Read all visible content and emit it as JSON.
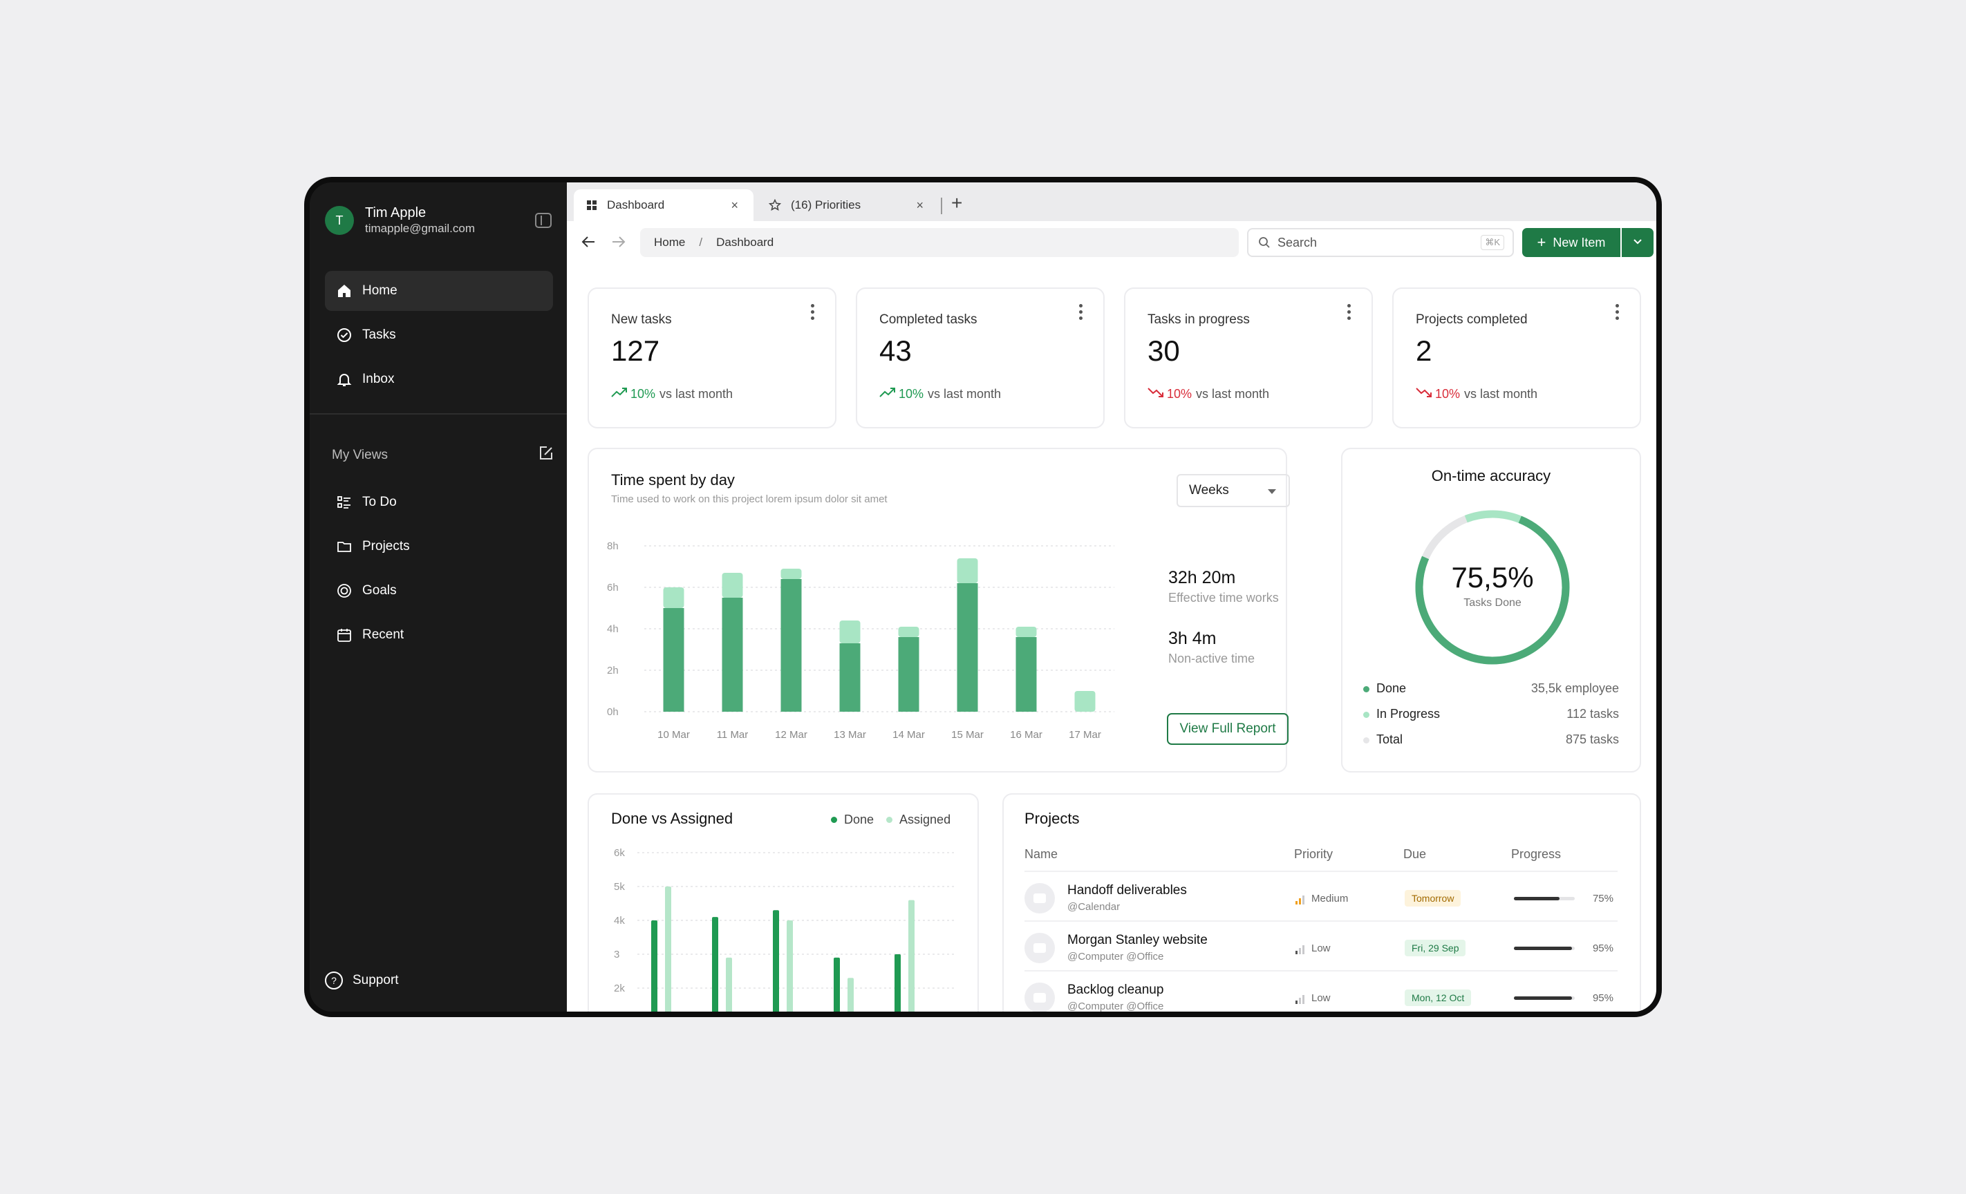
{
  "user": {
    "initial": "T",
    "name": "Tim Apple",
    "email": "timapple@gmail.com"
  },
  "nav": [
    {
      "label": "Home",
      "icon": "home-icon",
      "active": true
    },
    {
      "label": "Tasks",
      "icon": "check-circle-icon"
    },
    {
      "label": "Inbox",
      "icon": "bell-icon"
    }
  ],
  "my_views": {
    "title": "My Views",
    "items": [
      {
        "label": "To Do",
        "icon": "list-icon"
      },
      {
        "label": "Projects",
        "icon": "folder-icon"
      },
      {
        "label": "Goals",
        "icon": "target-icon"
      },
      {
        "label": "Recent",
        "icon": "calendar-icon"
      }
    ]
  },
  "support": {
    "label": "Support",
    "glyph": "?"
  },
  "tabs": [
    {
      "label": "Dashboard",
      "icon": "grid-icon",
      "active": true
    },
    {
      "label": "(16) Priorities",
      "icon": "star-icon"
    }
  ],
  "breadcrumb": [
    "Home",
    "Dashboard"
  ],
  "breadcrumb_sep": "/",
  "search": {
    "placeholder": "Search",
    "shortcut": "⌘K"
  },
  "new_item": {
    "label": "New Item"
  },
  "stats": [
    {
      "label": "New tasks",
      "value": "127",
      "trend": "up",
      "pct": "10%",
      "suffix": "vs last month"
    },
    {
      "label": "Completed tasks",
      "value": "43",
      "trend": "up",
      "pct": "10%",
      "suffix": "vs last month"
    },
    {
      "label": "Tasks in progress",
      "value": "30",
      "trend": "down",
      "pct": "10%",
      "suffix": "vs last month"
    },
    {
      "label": "Projects completed",
      "value": "2",
      "trend": "down",
      "pct": "10%",
      "suffix": "vs last month"
    }
  ],
  "time_spent": {
    "title": "Time spent by day",
    "subtitle": "Time used to work on this project lorem ipsum dolor sit amet",
    "period": "Weeks",
    "effective": {
      "value": "32h 20m",
      "label": "Effective time works"
    },
    "nonactive": {
      "value": "3h 4m",
      "label": "Non-active time"
    },
    "report_label": "View Full Report",
    "chart_data": {
      "type": "bar",
      "stacked": true,
      "categories": [
        "10 Mar",
        "11 Mar",
        "12 Mar",
        "13 Mar",
        "14 Mar",
        "15 Mar",
        "16 Mar",
        "17 Mar"
      ],
      "series": [
        {
          "values": [
            5,
            5.5,
            6.4,
            3.3,
            3.6,
            6.2,
            3.6,
            0
          ],
          "color": "#4caa78"
        },
        {
          "values": [
            1,
            1.2,
            0.5,
            1.1,
            0.5,
            1.2,
            0.5,
            1.0
          ],
          "color": "#a8e5c4"
        }
      ],
      "yticks": [
        "0h",
        "2h",
        "4h",
        "6h",
        "8h"
      ],
      "ylim": [
        0,
        8
      ],
      "grid": true
    }
  },
  "accuracy": {
    "title": "On-time accuracy",
    "value": "75,5%",
    "label": "Tasks Done",
    "progress": 0.755,
    "legend": [
      {
        "label": "Done",
        "value": "35,5k employee",
        "color": "#4caa78"
      },
      {
        "label": "In Progress",
        "value": "112 tasks",
        "color": "#a8e5c4"
      },
      {
        "label": "Total",
        "value": "875 tasks",
        "color": "#e6e6e8"
      }
    ]
  },
  "done_assigned": {
    "title": "Done  vs Assigned",
    "legend": [
      {
        "label": "Done",
        "color": "#1f9a52"
      },
      {
        "label": "Assigned",
        "color": "#b5e6c9"
      }
    ],
    "chart_data": {
      "type": "bar",
      "yticks": [
        "2k",
        "3",
        "4k",
        "5k",
        "6k"
      ],
      "ylim": [
        1.5,
        6
      ],
      "grid": true,
      "series": [
        {
          "name": "Done",
          "values": [
            4.0,
            4.1,
            4.3,
            2.9,
            3.0
          ],
          "color": "#1f9a52"
        },
        {
          "name": "Assigned",
          "values": [
            5.0,
            2.9,
            4.0,
            2.3,
            4.6
          ],
          "color": "#b5e6c9"
        }
      ]
    }
  },
  "projects": {
    "title": "Projects",
    "columns": [
      "Name",
      "Priority",
      "Due",
      "Progress"
    ],
    "rows": [
      {
        "name": "Handoff deliverables",
        "tags": "@Calendar",
        "priority": "Medium",
        "prio_level": 2,
        "due": "Tomorrow",
        "due_type": "warn",
        "progress": 0.75,
        "progress_label": "75%"
      },
      {
        "name": "Morgan Stanley website",
        "tags": "@Computer @Office",
        "priority": "Low",
        "prio_level": 1,
        "due": "Fri, 29 Sep",
        "due_type": "ok",
        "progress": 0.95,
        "progress_label": "95%"
      },
      {
        "name": "Backlog cleanup",
        "tags": "@Computer @Office",
        "priority": "Low",
        "prio_level": 1,
        "due": "Mon, 12 Oct",
        "due_type": "ok",
        "progress": 0.95,
        "progress_label": "95%"
      }
    ]
  }
}
